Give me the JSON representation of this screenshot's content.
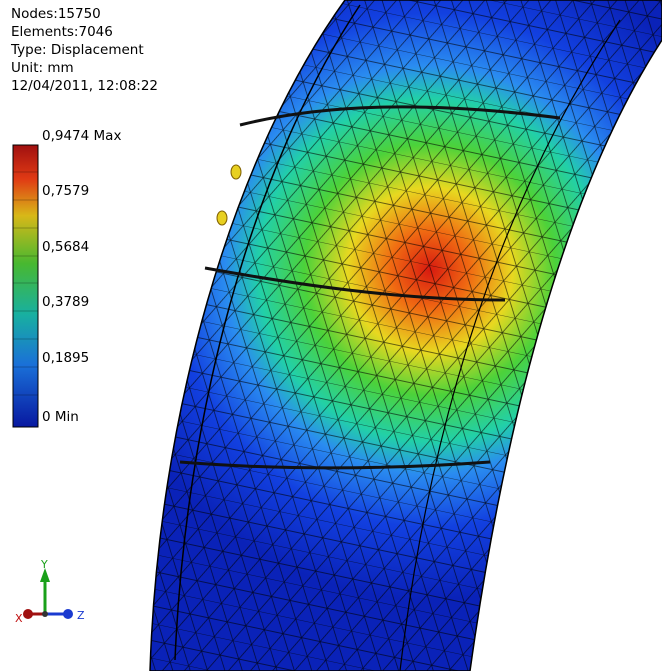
{
  "info": {
    "nodes": "Nodes:15750",
    "elements": "Elements:7046",
    "type": "Type: Displacement",
    "unit": "Unit: mm",
    "timestamp": "12/04/2011, 12:08:22"
  },
  "legend": {
    "labels": [
      "0,9474 Max",
      "0,7579",
      "0,5684",
      "0,3789",
      "0,1895",
      "0 Min"
    ]
  },
  "triad": {
    "x": "X",
    "y": "Y",
    "z": "Z"
  }
}
